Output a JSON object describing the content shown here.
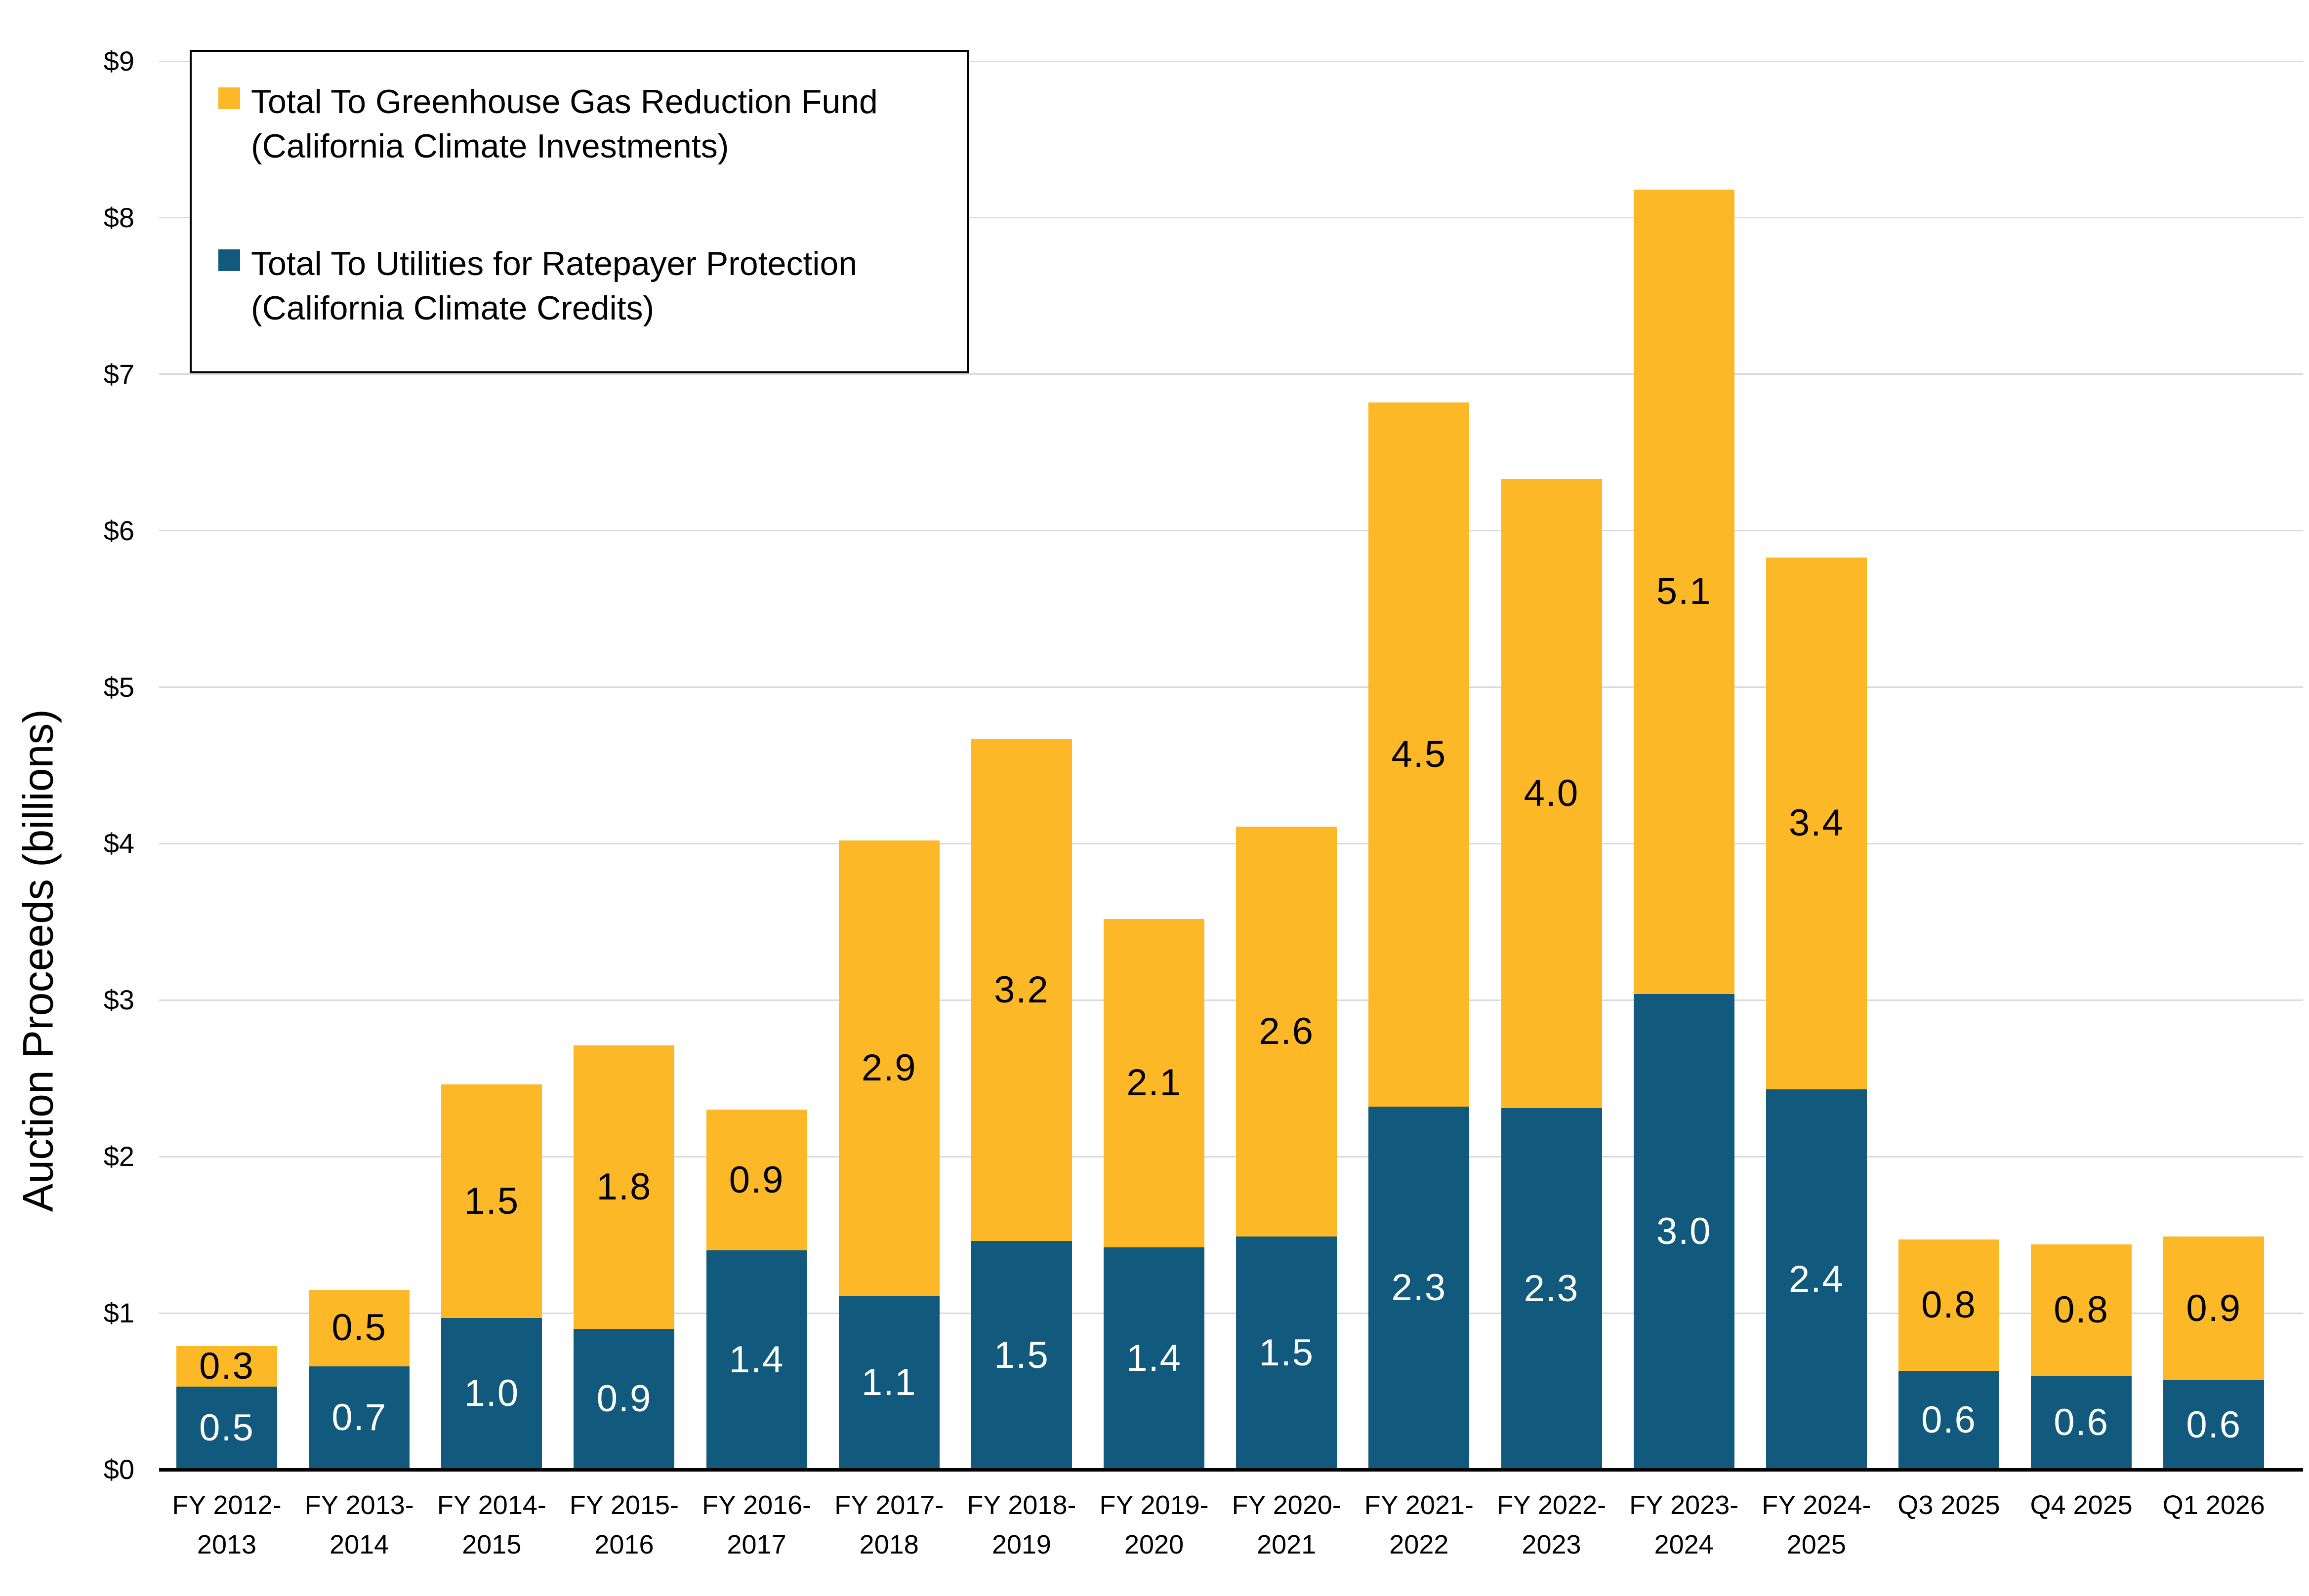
{
  "page": {
    "background": "#FFFFFF"
  },
  "colors": {
    "ggrf_yellow": "#FDB827",
    "utilities_blue": "#115A7E",
    "gridline_gray": "#D9D9D9",
    "axis_line": "#000000",
    "text": "#000000",
    "bar_label_on_blue": "#FFFFFF",
    "bar_label_on_yellow": "#000000"
  },
  "chart_data": {
    "type": "bar",
    "variant": "stacked-vertical",
    "title": "",
    "xlabel": "",
    "ylabel": "Auction Proceeds (billions)",
    "ylim": [
      0,
      9
    ],
    "ytick_labels": [
      "$0",
      "$1",
      "$2",
      "$3",
      "$4",
      "$5",
      "$6",
      "$7",
      "$8",
      "$9"
    ],
    "grid": "horizontal",
    "legend_position": "top-left-boxed",
    "categories": [
      "FY 2012-2013",
      "FY 2013-2014",
      "FY 2014-2015",
      "FY 2015-2016",
      "FY 2016-2017",
      "FY 2017-2018",
      "FY 2018-2019",
      "FY 2019-2020",
      "FY 2020-2021",
      "FY 2021-2022",
      "FY 2022-2023",
      "FY 2023-2024",
      "FY 2024-2025",
      "Q3 2025",
      "Q4 2025",
      "Q1 2026"
    ],
    "category_label_lines": [
      [
        "FY 2012-",
        "2013"
      ],
      [
        "FY 2013-",
        "2014"
      ],
      [
        "FY 2014-",
        "2015"
      ],
      [
        "FY 2015-",
        "2016"
      ],
      [
        "FY 2016-",
        "2017"
      ],
      [
        "FY 2017-",
        "2018"
      ],
      [
        "FY 2018-",
        "2019"
      ],
      [
        "FY 2019-",
        "2020"
      ],
      [
        "FY 2020-",
        "2021"
      ],
      [
        "FY 2021-",
        "2022"
      ],
      [
        "FY 2022-",
        "2023"
      ],
      [
        "FY 2023-",
        "2024"
      ],
      [
        "FY 2024-",
        "2025"
      ],
      [
        "Q3 2025"
      ],
      [
        "Q4 2025"
      ],
      [
        "Q1 2026"
      ]
    ],
    "series": [
      {
        "name": "Total To Utilities for Ratepayer Protection (California Climate Credits)",
        "stack_order": "bottom",
        "color": "#115A7E",
        "label_text_color": "#FFFFFF",
        "values": [
          0.5,
          0.7,
          1.0,
          0.9,
          1.4,
          1.1,
          1.5,
          1.4,
          1.5,
          2.3,
          2.3,
          3.0,
          2.4,
          0.6,
          0.6,
          0.6
        ],
        "values_precise_est": [
          0.53,
          0.66,
          0.97,
          0.9,
          1.4,
          1.11,
          1.46,
          1.42,
          1.49,
          2.32,
          2.31,
          3.04,
          2.43,
          0.63,
          0.6,
          0.57
        ],
        "data_labels": [
          "0.5",
          "0.7",
          "1.0",
          "0.9",
          "1.4",
          "1.1",
          "1.5",
          "1.4",
          "1.5",
          "2.3",
          "2.3",
          "3.0",
          "2.4",
          "0.6",
          "0.6",
          "0.6"
        ]
      },
      {
        "name": "Total To Greenhouse Gas Reduction Fund (California Climate Investments)",
        "stack_order": "top",
        "color": "#FDB827",
        "label_text_color": "#000000",
        "values": [
          0.3,
          0.5,
          1.5,
          1.8,
          0.9,
          2.9,
          3.2,
          2.1,
          2.6,
          4.5,
          4.0,
          5.1,
          3.4,
          0.8,
          0.8,
          0.9
        ],
        "values_precise_est": [
          0.26,
          0.49,
          1.49,
          1.81,
          0.9,
          2.91,
          3.21,
          2.1,
          2.62,
          4.5,
          4.02,
          5.14,
          3.4,
          0.84,
          0.84,
          0.92
        ],
        "data_labels": [
          "0.3",
          "0.5",
          "1.5",
          "1.8",
          "0.9",
          "2.9",
          "3.2",
          "2.1",
          "2.6",
          "4.5",
          "4.0",
          "5.1",
          "3.4",
          "0.8",
          "0.8",
          "0.9"
        ]
      }
    ]
  },
  "legend": {
    "items": [
      {
        "swatch_color": "#FDB827",
        "lines": [
          "Total To Greenhouse Gas Reduction Fund",
          "(California Climate Investments)"
        ]
      },
      {
        "swatch_color": "#115A7E",
        "lines": [
          "Total To Utilities for Ratepayer Protection",
          "(California Climate Credits)"
        ]
      }
    ]
  }
}
